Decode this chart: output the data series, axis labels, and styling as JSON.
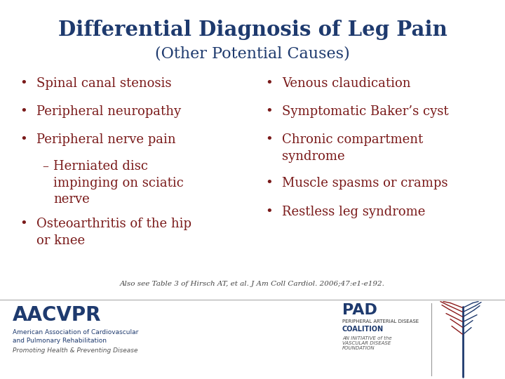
{
  "bg_main": "#cdd3db",
  "bg_footer": "#ffffff",
  "title_line1": "Differential Diagnosis of Leg Pain",
  "title_line2": "(Other Potential Causes)",
  "title_color": "#1e3a6e",
  "bullet_color": "#7a1a1a",
  "footnote": "Also see Table 3 of Hirsch AT, et al. J Am Coll Cardiol. 2006;47:e1-e192.",
  "footnote_color": "#444444",
  "left_col": [
    {
      "bullet": "•",
      "text": "Spinal canal stenosis",
      "sub": false
    },
    {
      "bullet": "•",
      "text": "Peripheral neuropathy",
      "sub": false
    },
    {
      "bullet": "•",
      "text": "Peripheral nerve pain",
      "sub": false
    },
    {
      "bullet": "–",
      "text": "Herniated disc\nimpinging on sciatic\nnerve",
      "sub": true
    },
    {
      "bullet": "•",
      "text": "Osteoarthritis of the hip\nor knee",
      "sub": false
    }
  ],
  "right_col": [
    {
      "bullet": "•",
      "text": "Venous claudication"
    },
    {
      "bullet": "•",
      "text": "Symptomatic Baker’s cyst"
    },
    {
      "bullet": "•",
      "text": "Chronic compartment\nsyndrome"
    },
    {
      "bullet": "•",
      "text": "Muscle spasms or cramps"
    },
    {
      "bullet": "•",
      "text": "Restless leg syndrome"
    }
  ],
  "aacvpr_big": "AACVPR",
  "aacvpr_sub1": "American Association of Cardiovascular",
  "aacvpr_sub2": "and Pulmonary Rehabilitation",
  "aacvpr_tag": "Promoting Health & Preventing Disease",
  "pad_big": "PAD",
  "pad_sub1": "PERIPHERAL ARTERIAL DISEASE",
  "pad_sub2": "COALITION",
  "pad_sub3": "AN INITIATIVE of the",
  "pad_sub4": "VASCULAR DISEASE",
  "pad_sub5": "FOUNDATION"
}
